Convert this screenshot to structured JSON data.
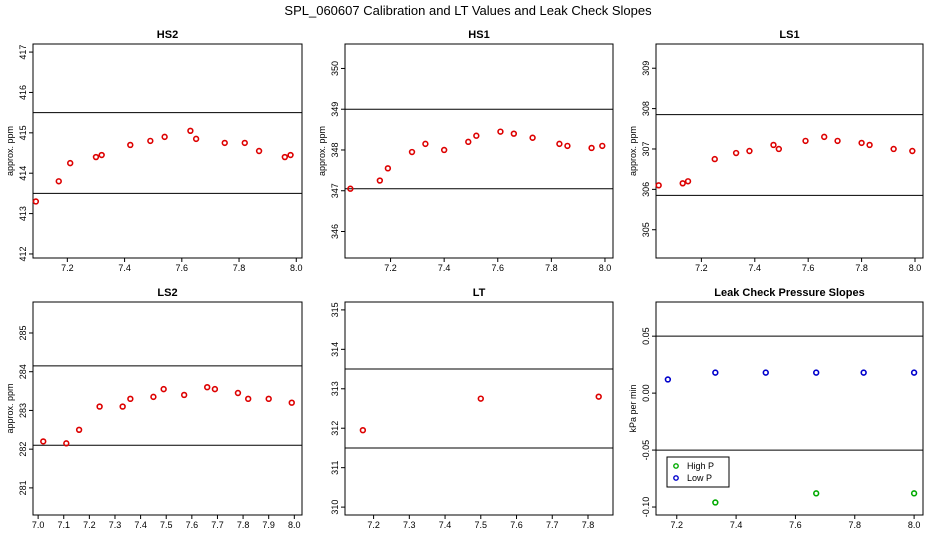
{
  "figure_title": "SPL_060607  Calibration and LT Values and Leak Check Slopes",
  "chart_data": [
    {
      "type": "scatter",
      "title": "HS2",
      "ylabel": "approx. ppm",
      "xlim": [
        7.08,
        8.02
      ],
      "ylim": [
        411.9,
        417.2
      ],
      "xticks": [
        "7.2",
        "7.4",
        "7.6",
        "7.8",
        "8.0"
      ],
      "yticks": [
        "412",
        "413",
        "414",
        "415",
        "416",
        "417"
      ],
      "hlines": [
        415.5,
        413.5
      ],
      "marker_color": "#dd0000",
      "series": [
        {
          "x": [
            7.09,
            7.17,
            7.21,
            7.3,
            7.32,
            7.42,
            7.49,
            7.54,
            7.63,
            7.65,
            7.75,
            7.82,
            7.87,
            7.96,
            7.98
          ],
          "y": [
            413.3,
            413.8,
            414.25,
            414.4,
            414.45,
            414.7,
            414.8,
            414.9,
            415.05,
            414.85,
            414.75,
            414.75,
            414.55,
            414.4,
            414.45
          ]
        }
      ]
    },
    {
      "type": "scatter",
      "title": "HS1",
      "ylabel": "approx. ppm",
      "xlim": [
        7.03,
        8.03
      ],
      "ylim": [
        345.35,
        350.6
      ],
      "xticks": [
        "7.2",
        "7.4",
        "7.6",
        "7.8",
        "8.0"
      ],
      "yticks": [
        "346",
        "347",
        "348",
        "349",
        "350"
      ],
      "hlines": [
        349,
        347.05
      ],
      "marker_color": "#dd0000",
      "series": [
        {
          "x": [
            7.05,
            7.16,
            7.19,
            7.28,
            7.33,
            7.4,
            7.49,
            7.52,
            7.61,
            7.66,
            7.73,
            7.83,
            7.86,
            7.95,
            7.99
          ],
          "y": [
            347.05,
            347.25,
            347.55,
            347.95,
            348.15,
            348.0,
            348.2,
            348.35,
            348.45,
            348.4,
            348.3,
            348.15,
            348.1,
            348.05,
            348.1
          ]
        }
      ]
    },
    {
      "type": "scatter",
      "title": "LS1",
      "ylabel": "approx. ppm",
      "xlim": [
        7.03,
        8.03
      ],
      "ylim": [
        304.3,
        309.6
      ],
      "xticks": [
        "7.2",
        "7.4",
        "7.6",
        "7.8",
        "8.0"
      ],
      "yticks": [
        "305",
        "306",
        "307",
        "308",
        "309"
      ],
      "hlines": [
        307.85,
        305.85
      ],
      "marker_color": "#dd0000",
      "series": [
        {
          "x": [
            7.04,
            7.13,
            7.15,
            7.25,
            7.33,
            7.38,
            7.47,
            7.49,
            7.59,
            7.66,
            7.71,
            7.8,
            7.83,
            7.92,
            7.99
          ],
          "y": [
            306.1,
            306.15,
            306.2,
            306.75,
            306.9,
            306.95,
            307.1,
            307.0,
            307.2,
            307.3,
            307.2,
            307.15,
            307.1,
            307.0,
            306.95
          ]
        }
      ]
    },
    {
      "type": "scatter",
      "title": "LS2",
      "ylabel": "approx. ppm",
      "xlim": [
        6.98,
        8.03
      ],
      "ylim": [
        280.3,
        285.8
      ],
      "xticks": [
        "7.0",
        "7.1",
        "7.2",
        "7.3",
        "7.4",
        "7.5",
        "7.6",
        "7.7",
        "7.8",
        "7.9",
        "8.0"
      ],
      "yticks": [
        "281",
        "282",
        "283",
        "284",
        "285"
      ],
      "hlines": [
        284.15,
        282.1
      ],
      "marker_color": "#dd0000",
      "series": [
        {
          "x": [
            7.02,
            7.11,
            7.16,
            7.24,
            7.33,
            7.36,
            7.45,
            7.49,
            7.57,
            7.66,
            7.69,
            7.78,
            7.82,
            7.9,
            7.99
          ],
          "y": [
            282.2,
            282.15,
            282.5,
            283.1,
            283.1,
            283.3,
            283.35,
            283.55,
            283.4,
            283.6,
            283.55,
            283.45,
            283.3,
            283.3,
            283.2
          ]
        }
      ]
    },
    {
      "type": "scatter",
      "title": "LT",
      "ylabel": "",
      "xlim": [
        7.12,
        7.87
      ],
      "ylim": [
        309.8,
        315.2
      ],
      "xticks": [
        "7.2",
        "7.3",
        "7.4",
        "7.5",
        "7.6",
        "7.7",
        "7.8"
      ],
      "yticks": [
        "310",
        "311",
        "312",
        "313",
        "314",
        "315"
      ],
      "hlines": [
        313.5,
        311.5
      ],
      "marker_color": "#dd0000",
      "series": [
        {
          "x": [
            7.17,
            7.5,
            7.83
          ],
          "y": [
            311.95,
            312.75,
            312.8
          ]
        }
      ]
    },
    {
      "type": "scatter",
      "title": "Leak Check Pressure Slopes",
      "ylabel": "kPa per min",
      "xlim": [
        7.13,
        8.03
      ],
      "ylim": [
        -0.107,
        0.08
      ],
      "xticks": [
        "7.2",
        "7.4",
        "7.6",
        "7.8",
        "8.0"
      ],
      "yticks": [
        "-0.10",
        "-0.05",
        "0.00",
        "0.05"
      ],
      "hlines": [
        0.05,
        -0.05
      ],
      "legend": {
        "position": "bottom-left",
        "entries": [
          "High P",
          "Low P"
        ]
      },
      "series": [
        {
          "name": "High P",
          "color": "#00aa00",
          "x": [
            7.33,
            7.67,
            8.0
          ],
          "y": [
            -0.096,
            -0.088,
            -0.088
          ]
        },
        {
          "name": "Low P",
          "color": "#0000cc",
          "x": [
            7.17,
            7.33,
            7.5,
            7.67,
            7.83,
            8.0
          ],
          "y": [
            0.012,
            0.018,
            0.018,
            0.018,
            0.018,
            0.018
          ]
        }
      ]
    }
  ]
}
